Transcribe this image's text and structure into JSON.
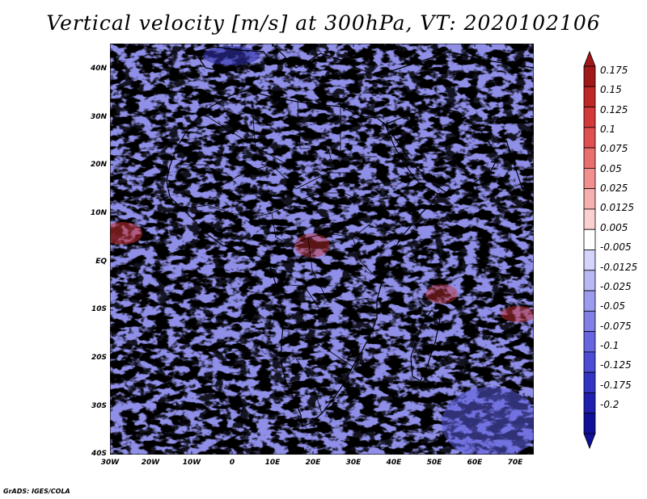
{
  "title": "Vertical velocity [m/s] at 300hPa, VT: 2020102106",
  "credit": "GrADS: IGES/COLA",
  "map": {
    "lat_labels": [
      "40N",
      "30N",
      "20N",
      "10N",
      "EQ",
      "10S",
      "20S",
      "30S",
      "40S"
    ],
    "lon_labels": [
      "30W",
      "20W",
      "10W",
      "0",
      "10E",
      "20E",
      "30E",
      "40E",
      "50E",
      "60E",
      "70E"
    ]
  },
  "colorbar": {
    "labels": [
      "0.175",
      "0.15",
      "0.125",
      "0.1",
      "0.075",
      "0.05",
      "0.025",
      "0.0125",
      "0.005",
      "-0.005",
      "-0.0125",
      "-0.025",
      "-0.05",
      "-0.075",
      "-0.1",
      "-0.125",
      "-0.175",
      "-0.2"
    ],
    "colors": [
      "#a01818",
      "#c02828",
      "#d43a3a",
      "#e05050",
      "#ea7070",
      "#f29090",
      "#f7b0b0",
      "#fbd0d0",
      "#ffffff",
      "#d4d4fa",
      "#b8b8f4",
      "#9c9cee",
      "#8080e8",
      "#6666e0",
      "#4c4cd4",
      "#3434c4",
      "#2020b0",
      "#101098"
    ]
  },
  "field_colors": {
    "positive": "#e86060",
    "negative": "#6a6ae6",
    "neutral": "#f4f4fb"
  }
}
